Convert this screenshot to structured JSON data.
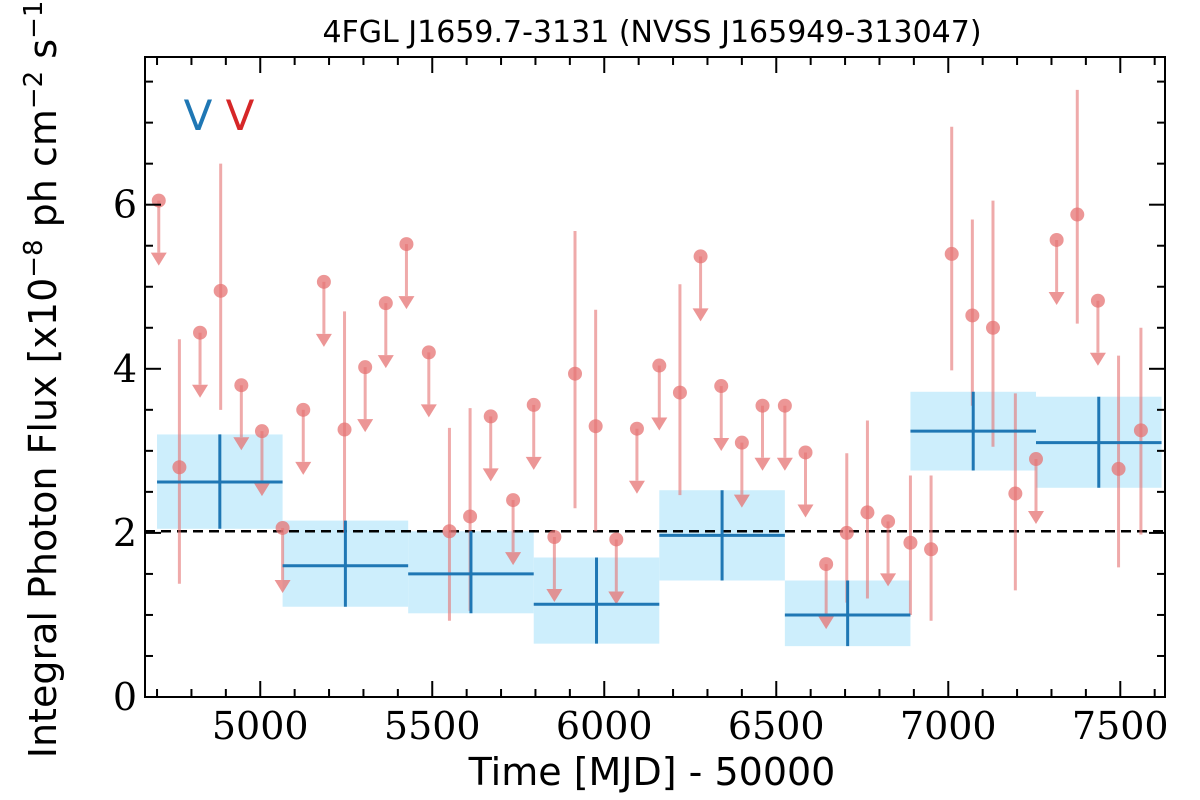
{
  "chart_data": {
    "type": "scatter",
    "title": "4FGL J1659.7-3131 (NVSS J165949-313047)",
    "xlabel": "Time [MJD] - 50000",
    "ylabel": "Integral Photon Flux [x10",
    "ylabel_exp": "−8",
    "ylabel_mid": " ph cm",
    "ylabel_exp2": "−2",
    "ylabel_end": " s",
    "ylabel_exp3": "−1",
    "ylabel_close": "]",
    "xlim": [
      4665,
      7630
    ],
    "ylim": [
      0,
      7.8
    ],
    "xticks": [
      5000,
      5500,
      6000,
      6500,
      7000,
      7500
    ],
    "yticks": [
      0,
      2,
      4,
      6
    ],
    "reference_line": 2.02,
    "legend_markers": [
      {
        "label": "V",
        "color": "#1f77b4"
      },
      {
        "label": "V",
        "color": "#d62728"
      }
    ],
    "colors": {
      "bin_fill": "#cdeefc",
      "bin_line": "#1f77b4",
      "points": "#e57373",
      "reference": "#000000"
    },
    "series": [
      {
        "name": "",
        "kind": "binned",
        "points": [
          {
            "x0": 4700,
            "x1": 5065,
            "y": 2.62,
            "lo": 2.05,
            "hi": 3.2
          },
          {
            "x0": 5065,
            "x1": 5430,
            "y": 1.6,
            "lo": 1.1,
            "hi": 2.15
          },
          {
            "x0": 5430,
            "x1": 5795,
            "y": 1.5,
            "lo": 1.02,
            "hi": 2.02
          },
          {
            "x0": 5795,
            "x1": 6160,
            "y": 1.13,
            "lo": 0.65,
            "hi": 1.7
          },
          {
            "x0": 6160,
            "x1": 6525,
            "y": 1.97,
            "lo": 1.42,
            "hi": 2.52
          },
          {
            "x0": 6525,
            "x1": 6890,
            "y": 1.0,
            "lo": 0.62,
            "hi": 1.42
          },
          {
            "x0": 6890,
            "x1": 7255,
            "y": 3.24,
            "lo": 2.76,
            "hi": 3.72
          },
          {
            "x0": 7255,
            "x1": 7620,
            "y": 3.1,
            "lo": 2.55,
            "hi": 3.66
          }
        ]
      },
      {
        "name": "",
        "kind": "detections",
        "points": [
          {
            "x": 4765,
            "y": 2.8,
            "lo": 1.38,
            "hi": 4.36
          },
          {
            "x": 4885,
            "y": 4.95,
            "lo": 3.5,
            "hi": 6.5
          },
          {
            "x": 5245,
            "y": 3.26,
            "lo": 2.0,
            "hi": 4.7
          },
          {
            "x": 5550,
            "y": 2.02,
            "lo": 0.93,
            "hi": 3.28
          },
          {
            "x": 5610,
            "y": 2.2,
            "lo": 1.05,
            "hi": 3.52
          },
          {
            "x": 5915,
            "y": 3.94,
            "lo": 2.3,
            "hi": 5.68
          },
          {
            "x": 5975,
            "y": 3.3,
            "lo": 2.02,
            "hi": 4.72
          },
          {
            "x": 6220,
            "y": 3.71,
            "lo": 2.46,
            "hi": 5.03
          },
          {
            "x": 6705,
            "y": 2.0,
            "lo": 1.15,
            "hi": 2.97
          },
          {
            "x": 6765,
            "y": 2.25,
            "lo": 1.2,
            "hi": 3.37
          },
          {
            "x": 6890,
            "y": 1.88,
            "lo": 1.0,
            "hi": 2.7
          },
          {
            "x": 6950,
            "y": 1.8,
            "lo": 0.93,
            "hi": 2.7
          },
          {
            "x": 7010,
            "y": 5.4,
            "lo": 3.98,
            "hi": 6.95
          },
          {
            "x": 7070,
            "y": 4.65,
            "lo": 3.55,
            "hi": 5.82
          },
          {
            "x": 7130,
            "y": 4.5,
            "lo": 3.05,
            "hi": 6.05
          },
          {
            "x": 7195,
            "y": 2.48,
            "lo": 1.3,
            "hi": 3.7
          },
          {
            "x": 7375,
            "y": 5.88,
            "lo": 4.55,
            "hi": 7.4
          },
          {
            "x": 7495,
            "y": 2.78,
            "lo": 1.58,
            "hi": 4.16
          },
          {
            "x": 7560,
            "y": 3.25,
            "lo": 1.98,
            "hi": 4.5
          }
        ]
      },
      {
        "name": "",
        "kind": "upper_limits",
        "points": [
          {
            "x": 4705,
            "y": 6.05
          },
          {
            "x": 4825,
            "y": 4.44
          },
          {
            "x": 4945,
            "y": 3.8
          },
          {
            "x": 5005,
            "y": 3.24
          },
          {
            "x": 5065,
            "y": 2.06
          },
          {
            "x": 5125,
            "y": 3.5
          },
          {
            "x": 5185,
            "y": 5.06
          },
          {
            "x": 5305,
            "y": 4.02
          },
          {
            "x": 5365,
            "y": 4.8
          },
          {
            "x": 5425,
            "y": 5.52
          },
          {
            "x": 5490,
            "y": 4.2
          },
          {
            "x": 5670,
            "y": 3.42
          },
          {
            "x": 5735,
            "y": 2.4
          },
          {
            "x": 5795,
            "y": 3.56
          },
          {
            "x": 5855,
            "y": 1.95
          },
          {
            "x": 6035,
            "y": 1.92
          },
          {
            "x": 6095,
            "y": 3.27
          },
          {
            "x": 6160,
            "y": 4.04
          },
          {
            "x": 6280,
            "y": 5.37
          },
          {
            "x": 6340,
            "y": 3.79
          },
          {
            "x": 6400,
            "y": 3.1
          },
          {
            "x": 6460,
            "y": 3.55
          },
          {
            "x": 6525,
            "y": 3.55
          },
          {
            "x": 6585,
            "y": 2.98
          },
          {
            "x": 6645,
            "y": 1.62
          },
          {
            "x": 6825,
            "y": 2.14
          },
          {
            "x": 7255,
            "y": 2.9
          },
          {
            "x": 7315,
            "y": 5.57
          },
          {
            "x": 7435,
            "y": 4.83
          }
        ]
      }
    ]
  }
}
